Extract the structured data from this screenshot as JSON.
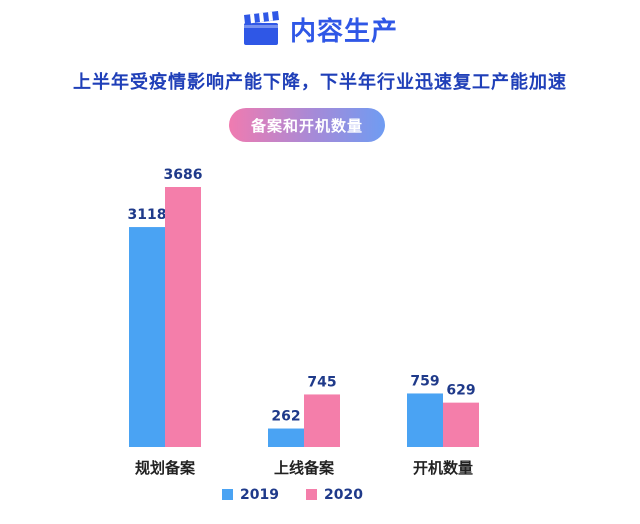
{
  "header": {
    "title": "内容生产",
    "icon": "clapperboard-icon"
  },
  "subtitle": "上半年受疫情影响产能下降，下半年行业迅速复工产能加速",
  "pill_label": "备案和开机数量",
  "colors": {
    "series_2019": "#4aa3f3",
    "series_2020": "#f47eaa",
    "title": "#2f57e6",
    "subtitle": "#1f3fb8"
  },
  "chart_data": {
    "type": "bar",
    "categories": [
      "规划备案",
      "上线备案",
      "开机数量"
    ],
    "series": [
      {
        "name": "2019",
        "values": [
          3118,
          262,
          759
        ]
      },
      {
        "name": "2020",
        "values": [
          3686,
          745,
          629
        ]
      }
    ],
    "ylim": [
      0,
      3686
    ],
    "grid": false,
    "legend": "bottom-center"
  }
}
